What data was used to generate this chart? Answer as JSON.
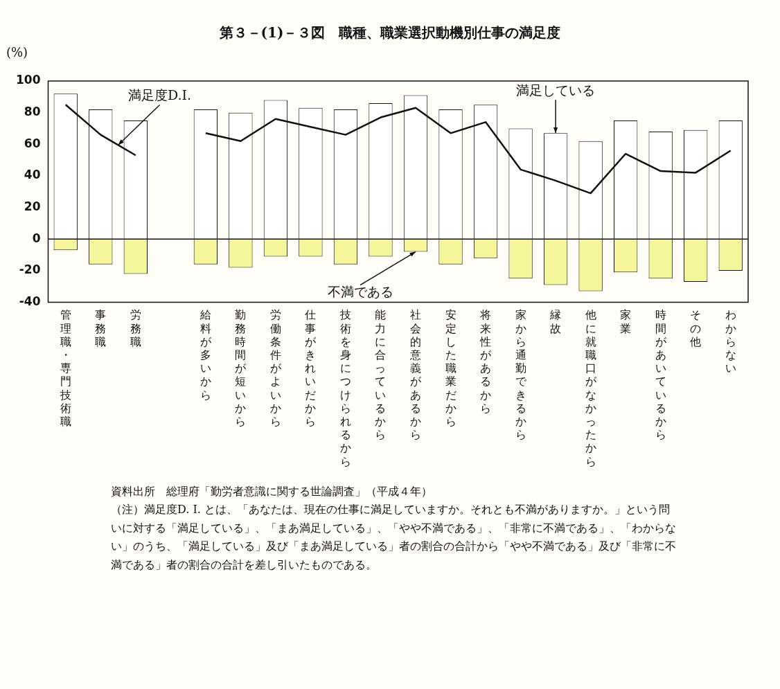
{
  "chart_data": {
    "type": "bar",
    "title": "第３－(1)－３図　職種、職業選択動機別仕事の満足度",
    "ylabel": "(%)",
    "categories": [
      "管理職・専門技術職",
      "事務職",
      "労務職",
      null,
      "給料が多いから",
      "勤務時間が短いから",
      "労働条件がよいから",
      "仕事がきれいだから",
      "技術を身につけられるから",
      "能力に合っているから",
      "社会的意義があるから",
      "安定した職業だから",
      "将来性があるから",
      "家から通勤できるから",
      "縁故",
      "他に就職口がなかったから",
      "家業",
      "時間があいているから",
      "その他",
      "わからない"
    ],
    "series": [
      {
        "name": "満足している",
        "type": "bar",
        "color": "#ffffff",
        "values": [
          92,
          82,
          75,
          null,
          82,
          80,
          88,
          83,
          82,
          86,
          91,
          82,
          85,
          70,
          67,
          62,
          75,
          68,
          69,
          75
        ]
      },
      {
        "name": "不満である",
        "type": "bar",
        "color": "#f5f59a",
        "values": [
          -7,
          -16,
          -22,
          null,
          -16,
          -18,
          -11,
          -11,
          -16,
          -11,
          -8,
          -16,
          -12,
          -25,
          -29,
          -33,
          -21,
          -25,
          -27,
          -20
        ]
      },
      {
        "name": "満足度D.I.",
        "type": "line",
        "color": "#111111",
        "values": [
          85,
          66,
          53,
          null,
          67,
          62,
          76,
          71,
          66,
          77,
          83,
          67,
          74,
          44,
          37,
          29,
          54,
          43,
          42,
          56
        ]
      }
    ],
    "stacked": true,
    "marker": "none",
    "legend": false,
    "grid": false,
    "ref_lines": [
      {
        "axis": "y",
        "value": 0
      }
    ],
    "ylim": [
      -40,
      100
    ],
    "yticks": [
      -40,
      -20,
      0,
      20,
      40,
      60,
      80,
      100
    ],
    "annotations": [
      "資料出所　総理府「勤労者意識に関する世論調査」（平成４年）",
      "（注）満足度D. I. とは、「あなたは、現在の仕事に満足していますか。それとも不満がありますか。」という問いに対する「満足している」、「まあ満足している」、「やや不満である」、「非常に不満である」、「わからない」のうち、「満足している」及び「まあ満足している」者の割合の合計から「やや不満である」及び「非常に不満である」者の割合の合計を差し引いたものである。"
    ]
  }
}
